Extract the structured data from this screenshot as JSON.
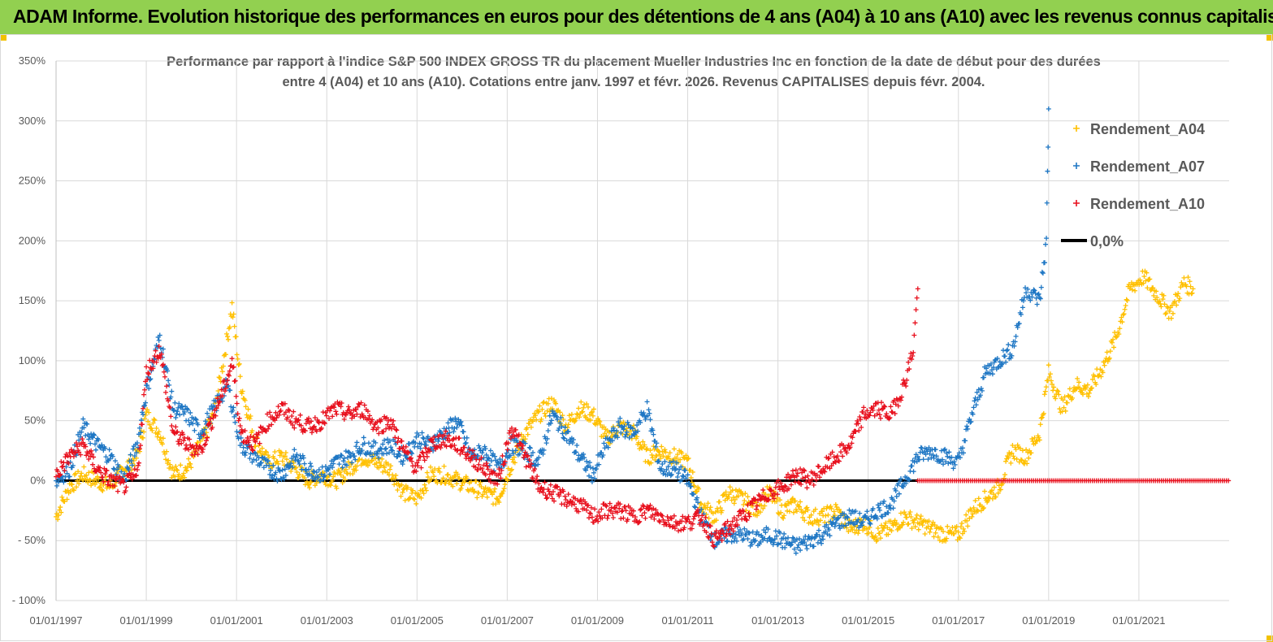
{
  "banner": {
    "title": "ADAM Informe. Evolution historique des performances en euros pour des détentions de 4 ans (A04) à 10 ans (A10) avec les revenus connus capitalisés"
  },
  "colors": {
    "banner_bg": "#92D050",
    "a04": "#FFC000",
    "a07": "#1F77C4",
    "a10": "#E8111E",
    "zero": "#000000"
  },
  "chart_data": {
    "type": "scatter",
    "title_line1": "Performance par rapport à l'indice S&P 500 INDEX GROSS TR  du placement Mueller Industries Inc en fonction de la date de début pour des durées",
    "title_line2": "entre 4 (A04) et 10 ans (A10). Cotations entre janv. 1997 et févr. 2026. Revenus CAPITALISES depuis févr. 2004.",
    "ylim": [
      -100,
      350
    ],
    "yticks": [
      "350%",
      "300%",
      "250%",
      "200%",
      "150%",
      "100%",
      "50%",
      "0%",
      "- 50%",
      "- 100%"
    ],
    "ytick_values": [
      350,
      300,
      250,
      200,
      150,
      100,
      50,
      0,
      -50,
      -100
    ],
    "xlim": [
      1997.0,
      2023.0
    ],
    "xticks": [
      "01/01/1997",
      "01/01/1999",
      "01/01/2001",
      "01/01/2003",
      "01/01/2005",
      "01/01/2007",
      "01/01/2009",
      "01/01/2011",
      "01/01/2013",
      "01/01/2015",
      "01/01/2017",
      "01/01/2019",
      "01/01/2021"
    ],
    "xtick_values": [
      1997,
      1999,
      2001,
      2003,
      2005,
      2007,
      2009,
      2011,
      2013,
      2015,
      2017,
      2019,
      2021
    ],
    "legend": [
      "Rendement_A04",
      "Rendement_A07",
      "Rendement_A10",
      "0,0%"
    ],
    "series": [
      {
        "name": "Rendement_A04",
        "x": [
          1997.0,
          1997.3,
          1997.6,
          1997.9,
          1998.2,
          1998.5,
          1998.8,
          1999.0,
          1999.3,
          1999.6,
          1999.9,
          2000.2,
          2000.5,
          2000.8,
          2000.9,
          2001.1,
          2001.4,
          2001.7,
          2002.0,
          2002.3,
          2002.6,
          2002.9,
          2003.2,
          2003.5,
          2003.8,
          2004.1,
          2004.4,
          2004.7,
          2005.0,
          2005.3,
          2005.6,
          2005.9,
          2006.2,
          2006.5,
          2006.8,
          2007.1,
          2007.4,
          2007.7,
          2008.0,
          2008.3,
          2008.6,
          2008.9,
          2009.2,
          2009.5,
          2009.8,
          2010.1,
          2010.4,
          2010.7,
          2011.0,
          2011.3,
          2011.6,
          2011.9,
          2012.2,
          2012.5,
          2012.8,
          2013.1,
          2013.4,
          2013.7,
          2014.0,
          2014.3,
          2014.6,
          2014.9,
          2015.2,
          2015.5,
          2015.8,
          2016.1,
          2016.4,
          2016.7,
          2017.0,
          2017.3,
          2017.6,
          2017.9,
          2018.2,
          2018.5,
          2018.8,
          2019.0,
          2019.3,
          2019.6,
          2019.9,
          2020.2,
          2020.5,
          2020.8,
          2021.1,
          2021.4,
          2021.7,
          2022.0,
          2022.2
        ],
        "y": [
          -30,
          -5,
          5,
          0,
          -5,
          10,
          20,
          55,
          40,
          5,
          10,
          30,
          55,
          120,
          145,
          80,
          35,
          15,
          20,
          10,
          0,
          5,
          0,
          10,
          20,
          15,
          10,
          -10,
          -15,
          5,
          5,
          0,
          -5,
          -10,
          -15,
          15,
          40,
          55,
          65,
          45,
          60,
          55,
          35,
          45,
          40,
          20,
          25,
          20,
          15,
          -20,
          -30,
          -10,
          -15,
          -25,
          -10,
          -25,
          -20,
          -30,
          -30,
          -25,
          -40,
          -35,
          -45,
          -40,
          -30,
          -35,
          -40,
          -45,
          -45,
          -25,
          -15,
          -5,
          25,
          20,
          40,
          90,
          60,
          80,
          75,
          95,
          120,
          160,
          170,
          155,
          140,
          165,
          160
        ]
      },
      {
        "name": "Rendement_A07",
        "x": [
          1997.0,
          1997.3,
          1997.6,
          1997.9,
          1998.2,
          1998.5,
          1998.8,
          1999.0,
          1999.3,
          1999.6,
          1999.9,
          2000.2,
          2000.5,
          2000.8,
          2001.1,
          2001.4,
          2001.7,
          2002.0,
          2002.3,
          2002.6,
          2002.9,
          2003.2,
          2003.5,
          2003.8,
          2004.1,
          2004.4,
          2004.7,
          2005.0,
          2005.3,
          2005.6,
          2005.9,
          2006.2,
          2006.5,
          2006.8,
          2007.1,
          2007.4,
          2007.7,
          2008.0,
          2008.3,
          2008.6,
          2008.9,
          2009.2,
          2009.5,
          2009.8,
          2010.1,
          2010.4,
          2010.7,
          2011.0,
          2011.3,
          2011.6,
          2011.9,
          2012.2,
          2012.5,
          2012.8,
          2013.1,
          2013.4,
          2013.7,
          2014.0,
          2014.3,
          2014.6,
          2014.9,
          2015.2,
          2015.5,
          2015.8,
          2016.1,
          2016.4,
          2016.7,
          2017.0,
          2017.3,
          2017.6,
          2017.9,
          2018.2,
          2018.5,
          2018.8,
          2018.95,
          2019.0
        ],
        "y": [
          0,
          10,
          45,
          30,
          20,
          0,
          30,
          75,
          120,
          60,
          55,
          40,
          60,
          80,
          30,
          20,
          10,
          5,
          20,
          10,
          5,
          15,
          20,
          30,
          25,
          30,
          20,
          35,
          30,
          40,
          50,
          20,
          25,
          10,
          30,
          25,
          15,
          55,
          40,
          20,
          5,
          30,
          45,
          40,
          60,
          10,
          10,
          0,
          -30,
          -50,
          -45,
          -45,
          -50,
          -45,
          -50,
          -55,
          -50,
          -45,
          -35,
          -30,
          -35,
          -25,
          -20,
          0,
          20,
          25,
          20,
          15,
          55,
          90,
          100,
          110,
          160,
          150,
          200,
          310
        ]
      },
      {
        "name": "Rendement_A10",
        "x": [
          1997.0,
          1997.3,
          1997.6,
          1997.9,
          1998.2,
          1998.5,
          1998.8,
          1999.0,
          1999.3,
          1999.6,
          1999.9,
          2000.2,
          2000.5,
          2000.8,
          2000.9,
          2001.1,
          2001.4,
          2001.7,
          2002.0,
          2002.3,
          2002.6,
          2002.9,
          2003.2,
          2003.5,
          2003.8,
          2004.1,
          2004.4,
          2004.7,
          2005.0,
          2005.3,
          2005.6,
          2005.9,
          2006.2,
          2006.5,
          2006.8,
          2007.1,
          2007.4,
          2007.7,
          2008.0,
          2008.3,
          2008.6,
          2008.9,
          2009.2,
          2009.5,
          2009.8,
          2010.1,
          2010.4,
          2010.7,
          2011.0,
          2011.3,
          2011.6,
          2011.9,
          2012.2,
          2012.5,
          2012.8,
          2013.1,
          2013.4,
          2013.7,
          2014.0,
          2014.3,
          2014.6,
          2014.9,
          2015.2,
          2015.5,
          2015.8,
          2016.0,
          2016.1
        ],
        "y": [
          5,
          20,
          30,
          10,
          0,
          -5,
          5,
          90,
          110,
          40,
          30,
          25,
          55,
          85,
          100,
          40,
          30,
          50,
          60,
          50,
          45,
          50,
          60,
          55,
          60,
          45,
          50,
          25,
          10,
          30,
          35,
          30,
          20,
          10,
          0,
          45,
          20,
          -5,
          -10,
          -15,
          -20,
          -30,
          -25,
          -25,
          -30,
          -25,
          -30,
          -35,
          -35,
          -30,
          -50,
          -40,
          -30,
          -20,
          -10,
          -5,
          5,
          0,
          10,
          20,
          30,
          55,
          60,
          55,
          80,
          110,
          160
        ]
      },
      {
        "name": "0,0%",
        "x": [
          1997.0,
          2016.1
        ],
        "y": [
          0,
          0
        ]
      }
    ],
    "a10_flat_tail": {
      "from": 2016.1,
      "to": 2023.0,
      "value": 0
    }
  }
}
